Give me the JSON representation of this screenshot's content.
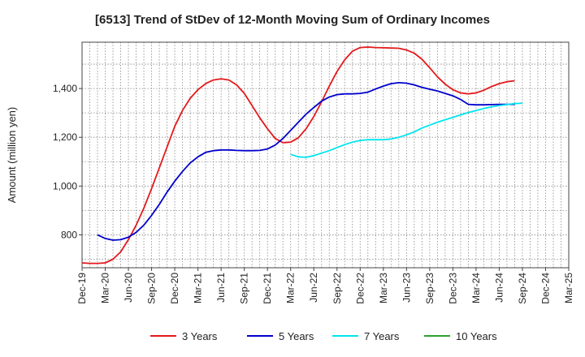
{
  "chart_data": {
    "type": "line",
    "title": "[6513]  Trend of StDev of 12-Month Moving Sum of Ordinary Incomes",
    "xlabel": "",
    "ylabel": "Amount (million yen)",
    "ylim": [
      665,
      1590
    ],
    "y_ticks": [
      800,
      1000,
      1200,
      1400
    ],
    "y_tick_labels": [
      "800",
      "1,000",
      "1,200",
      "1,400"
    ],
    "x_tick_labels": [
      "Dec-19",
      "Mar-20",
      "Jun-20",
      "Sep-20",
      "Dec-20",
      "Mar-21",
      "Jun-21",
      "Sep-21",
      "Dec-21",
      "Mar-22",
      "Jun-22",
      "Sep-22",
      "Dec-22",
      "Mar-23",
      "Jun-23",
      "Sep-23",
      "Dec-23",
      "Mar-24",
      "Jun-24",
      "Sep-24",
      "Dec-24",
      "Mar-25"
    ],
    "x_range_months": [
      0,
      63
    ],
    "grid": true,
    "legend_position": "bottom",
    "series": [
      {
        "name": "3 Years",
        "color": "#e31a1c",
        "start_month": 0,
        "values": [
          685,
          683,
          683,
          685,
          700,
          730,
          780,
          840,
          910,
          990,
          1075,
          1160,
          1245,
          1310,
          1360,
          1395,
          1420,
          1435,
          1440,
          1435,
          1415,
          1380,
          1330,
          1280,
          1235,
          1195,
          1178,
          1180,
          1198,
          1235,
          1285,
          1345,
          1410,
          1470,
          1518,
          1553,
          1568,
          1570,
          1568,
          1567,
          1566,
          1565,
          1558,
          1545,
          1520,
          1485,
          1448,
          1418,
          1395,
          1382,
          1378,
          1382,
          1393,
          1408,
          1420,
          1428,
          1432
        ]
      },
      {
        "name": "5 Years",
        "color": "#0000cc",
        "start_month": 2,
        "values": [
          800,
          785,
          778,
          780,
          790,
          810,
          840,
          880,
          925,
          975,
          1020,
          1060,
          1095,
          1120,
          1138,
          1145,
          1148,
          1148,
          1146,
          1145,
          1145,
          1146,
          1152,
          1168,
          1195,
          1228,
          1262,
          1295,
          1322,
          1348,
          1365,
          1375,
          1378,
          1378,
          1380,
          1385,
          1398,
          1410,
          1420,
          1424,
          1422,
          1415,
          1405,
          1397,
          1390,
          1380,
          1370,
          1355,
          1335,
          1333,
          1333,
          1334,
          1335,
          1335,
          1335
        ]
      },
      {
        "name": "7 Years",
        "color": "#00e5ee",
        "start_month": 27,
        "values": [
          1130,
          1120,
          1118,
          1125,
          1135,
          1145,
          1158,
          1170,
          1180,
          1187,
          1190,
          1190,
          1190,
          1193,
          1200,
          1210,
          1222,
          1238,
          1250,
          1262,
          1272,
          1282,
          1292,
          1302,
          1310,
          1318,
          1325,
          1330,
          1334,
          1338,
          1340
        ]
      },
      {
        "name": "10 Years",
        "color": "#2ca02c",
        "start_month": 0,
        "values": []
      }
    ]
  }
}
